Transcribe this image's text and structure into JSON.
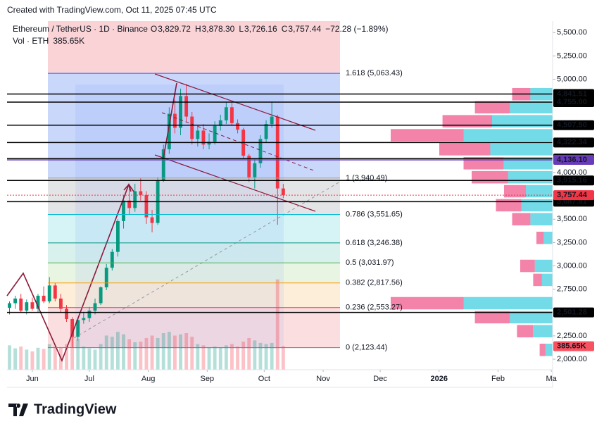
{
  "header": {
    "created": "Created with TradingView.com, Oct 11, 2025 07:45 UTC",
    "symbol": "Ethereum / TetherUS · 1D · Binance",
    "ohlc": [
      {
        "key": "O",
        "value": "3,829.72"
      },
      {
        "key": "H",
        "value": "3,878.30"
      },
      {
        "key": "L",
        "value": "3,726.16"
      },
      {
        "key": "C",
        "value": "3,757.44"
      }
    ],
    "change": "−72.28 (−1.89%)",
    "vol_label": "Vol · ETH",
    "vol_value": "385.65K"
  },
  "chart_data": {
    "type": "candlestick",
    "x": [
      -12,
      -9,
      -6,
      -3,
      0,
      3,
      6,
      9,
      12,
      15,
      18,
      21,
      24,
      27,
      30,
      33,
      36,
      39,
      42,
      45,
      48,
      51,
      54,
      57,
      60,
      63,
      66,
      69,
      72,
      75,
      78,
      81,
      84,
      87,
      90,
      93,
      96,
      99,
      102,
      105,
      108,
      111,
      114,
      117,
      120,
      123,
      126,
      129,
      132
    ],
    "open": [
      2550,
      2600,
      2650,
      2520,
      2610,
      2540,
      2680,
      2620,
      2790,
      2650,
      2540,
      2430,
      2240,
      2420,
      2440,
      2520,
      2600,
      2770,
      2980,
      3150,
      3480,
      3700,
      3620,
      3800,
      3760,
      3520,
      3460,
      3920,
      4250,
      4630,
      4480,
      4820,
      4600,
      4360,
      4450,
      4300,
      4330,
      4500,
      4560,
      4700,
      4530,
      4460,
      4180,
      3950,
      4100,
      4360,
      4520,
      4600,
      3829.72
    ],
    "high": [
      2620,
      2680,
      2700,
      2640,
      2660,
      2700,
      2780,
      2880,
      2820,
      2700,
      2580,
      2450,
      2450,
      2500,
      2560,
      2650,
      2780,
      3020,
      3180,
      3500,
      3760,
      3850,
      3880,
      3940,
      3800,
      3600,
      3950,
      4300,
      4700,
      4780,
      4900,
      4950,
      4650,
      4500,
      4520,
      4420,
      4550,
      4620,
      4760,
      4750,
      4570,
      4480,
      4200,
      4150,
      4400,
      4560,
      4760,
      4620,
      3878.3
    ],
    "low": [
      2480,
      2540,
      2500,
      2480,
      2520,
      2500,
      2600,
      2600,
      2620,
      2500,
      2400,
      2120,
      2200,
      2380,
      2400,
      2480,
      2580,
      2740,
      2950,
      3100,
      3400,
      3550,
      3580,
      3700,
      3450,
      3360,
      3440,
      3900,
      4200,
      4420,
      4400,
      4540,
      4300,
      4280,
      4250,
      4250,
      4300,
      4450,
      4520,
      4500,
      4420,
      4150,
      3900,
      3830,
      4050,
      4320,
      4480,
      3440,
      3726.16
    ],
    "close": [
      2600,
      2650,
      2520,
      2610,
      2540,
      2680,
      2620,
      2790,
      2650,
      2540,
      2430,
      2240,
      2420,
      2440,
      2520,
      2600,
      2770,
      2980,
      3150,
      3480,
      3700,
      3620,
      3800,
      3760,
      3520,
      3460,
      3920,
      4250,
      4630,
      4480,
      4820,
      4600,
      4360,
      4450,
      4300,
      4330,
      4500,
      4560,
      4700,
      4530,
      4460,
      4180,
      3950,
      4100,
      4360,
      4520,
      4600,
      3830,
      3757.44
    ],
    "volume": [
      400,
      350,
      380,
      330,
      300,
      360,
      340,
      420,
      380,
      360,
      420,
      600,
      500,
      380,
      350,
      330,
      420,
      560,
      540,
      620,
      580,
      500,
      450,
      460,
      520,
      560,
      520,
      600,
      620,
      560,
      580,
      600,
      540,
      420,
      400,
      360,
      380,
      360,
      400,
      420,
      380,
      460,
      520,
      480,
      440,
      420,
      440,
      1480,
      385.65
    ],
    "up_color": "#089981",
    "down_color": "#f23645",
    "ylim": [
      1887,
      5623
    ],
    "yticks": [
      {
        "value": 2000,
        "label": "2,000.00"
      },
      {
        "value": 2250,
        "label": "2,250.00"
      },
      {
        "value": 2750,
        "label": "2,750.00"
      },
      {
        "value": 3000,
        "label": "3,000.00"
      },
      {
        "value": 3250,
        "label": "3,250.00"
      },
      {
        "value": 3500,
        "label": "3,500.00"
      },
      {
        "value": 4000,
        "label": "4,000.00"
      },
      {
        "value": 5000,
        "label": "5,000.00"
      },
      {
        "value": 5250,
        "label": "5,250.00"
      },
      {
        "value": 5500,
        "label": "5,500.00"
      }
    ],
    "xlim": [
      -13.3,
      273.7
    ],
    "xticks": [
      {
        "value": 0,
        "label": "Jun"
      },
      {
        "value": 30,
        "label": "Jul"
      },
      {
        "value": 61,
        "label": "Aug"
      },
      {
        "value": 92,
        "label": "Sep"
      },
      {
        "value": 122,
        "label": "Oct"
      },
      {
        "value": 153,
        "label": "Nov"
      },
      {
        "value": 183,
        "label": "Dec"
      },
      {
        "value": 214,
        "label": "2026"
      },
      {
        "value": 245,
        "label": "Feb"
      },
      {
        "value": 273,
        "label": "Ma"
      }
    ],
    "volume_ylim": [
      0,
      1500
    ],
    "levels": [
      {
        "value": 4841.51,
        "label": "4,841.51",
        "color": "#000000"
      },
      {
        "value": 4755.0,
        "label": "4,755.00",
        "color": "#000000"
      },
      {
        "value": 4507.5,
        "label": "4,507.50",
        "color": "#000000"
      },
      {
        "value": 4322.34,
        "label": "4,322.34",
        "color": "#000000"
      },
      {
        "value": 4150.0,
        "label": "4,150.00",
        "color": "#000000"
      },
      {
        "value": 4136.1,
        "label": "4,136.10",
        "color": "#673ab7"
      },
      {
        "value": 3915.16,
        "label": "3,915.16",
        "color": "#000000"
      },
      {
        "value": 3687.81,
        "label": "3,687.81",
        "color": "#000000"
      },
      {
        "value": 2501.28,
        "label": "2,501.28",
        "color": "#000000"
      }
    ],
    "last_price": {
      "value": 3757.44,
      "label": "3,757.44",
      "color": "#f23645"
    },
    "last_volume": {
      "value": 385.65,
      "label": "385.65K",
      "color": "#f7525f"
    },
    "fib": [
      {
        "value": 5063.43,
        "label": "1.618 (5,063.43)",
        "color": "#2962ff",
        "fill": "#c9d7fb"
      },
      {
        "value": 3940.49,
        "label": "1 (3,940.49)",
        "color": "#9598a1",
        "fill": "#e3e4e6"
      },
      {
        "value": 3551.65,
        "label": "0.786 (3,551.65)",
        "color": "#00bcd4",
        "fill": "#d6f3f6"
      },
      {
        "value": 3246.38,
        "label": "0.618 (3,246.38)",
        "color": "#089981",
        "fill": "#d9f1ec"
      },
      {
        "value": 3031.97,
        "label": "0.5 (3,031.97)",
        "color": "#4caf50",
        "fill": "#e9f5e3"
      },
      {
        "value": 2817.56,
        "label": "0.382 (2,817.56)",
        "color": "#ff9800",
        "fill": "#fdeed9"
      },
      {
        "value": 2553.27,
        "label": "0.236 (2,553.27)",
        "color": "#f23645",
        "fill": "#fbdfe0"
      },
      {
        "value": 2123.44,
        "label": "0 (2,123.44)",
        "color": "#787b86",
        "fill": "#ffffff"
      }
    ],
    "volume_profile": {
      "prices": [
        4840,
        4700,
        4550,
        4400,
        4250,
        4100,
        3950,
        3800,
        3650,
        3500,
        3300,
        3000,
        2850,
        2600,
        2450,
        2300,
        2100
      ],
      "values": [
        25,
        48,
        68,
        100,
        70,
        55,
        50,
        30,
        35,
        25,
        10,
        20,
        12,
        100,
        48,
        22,
        8
      ],
      "xlim": [
        0,
        100
      ]
    }
  },
  "footer": {
    "brand": "TradingView"
  }
}
